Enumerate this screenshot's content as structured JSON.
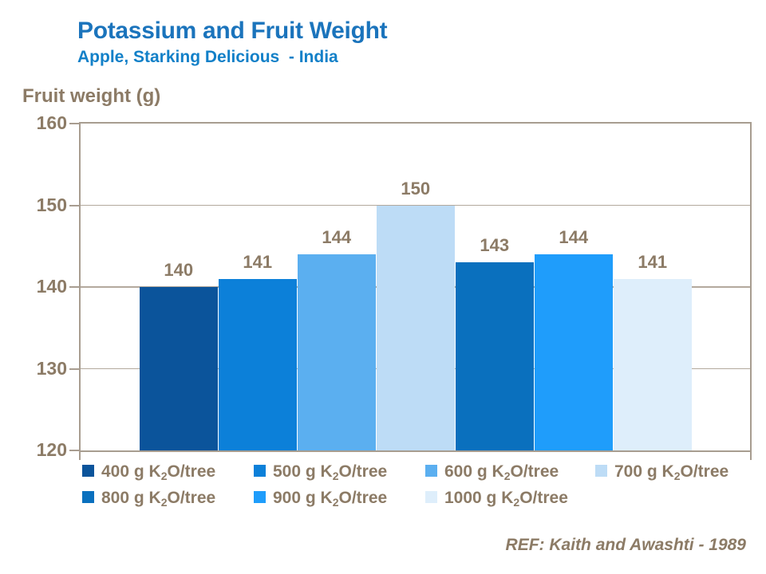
{
  "header": {
    "title": "Potassium and Fruit Weight",
    "subtitle": "Apple, Starking Delicious  - India"
  },
  "ref_text": "REF: Kaith and Awashti - 1989",
  "colors": {
    "title_blue": "#1B74BC",
    "subtitle_blue": "#1280C8",
    "text_brown": "#8C7B66",
    "axis_border": "#A89D90",
    "gridline": "#B3A99D"
  },
  "chart_data": {
    "type": "bar",
    "title": "Potassium and Fruit Weight",
    "subtitle": "Apple, Starking Delicious  - India",
    "ylabel": "Fruit weight (g)",
    "xlabel": "",
    "ylim": [
      120,
      160
    ],
    "yticks": [
      160,
      150,
      140,
      130,
      120
    ],
    "grid": true,
    "legend_position": "bottom",
    "categories": [
      "400 g K₂O/tree",
      "500 g K₂O/tree",
      "600 g K₂O/tree",
      "700 g K₂O/tree",
      "800 g K₂O/tree",
      "900 g K₂O/tree",
      "1000 g K₂O/tree"
    ],
    "values": [
      140,
      141,
      144,
      150,
      143,
      144,
      141
    ],
    "bar_colors": [
      "#0B549B",
      "#0C80D9",
      "#5BAFF0",
      "#BDDCF6",
      "#0A70BE",
      "#1F9DFB",
      "#DEEEFB"
    ],
    "legend_rows": [
      [
        0,
        1,
        2,
        3
      ],
      [
        4,
        5,
        6
      ]
    ],
    "annotation": "REF: Kaith and Awashti - 1989"
  }
}
